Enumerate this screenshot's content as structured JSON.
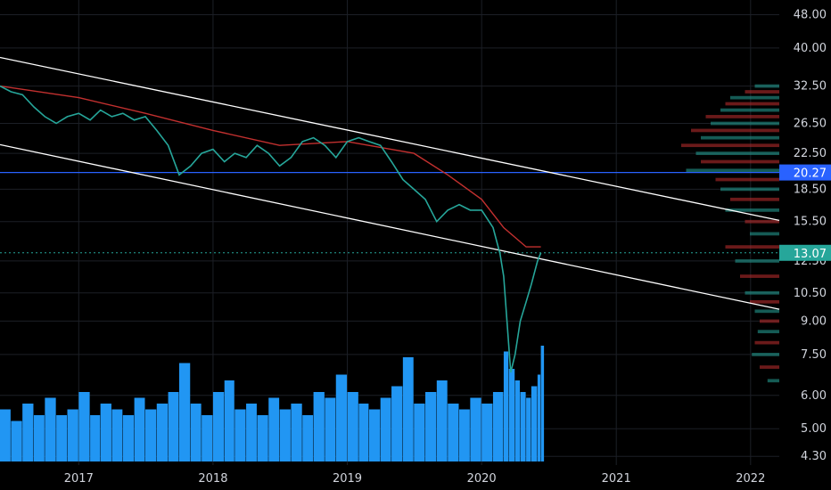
{
  "chart_data": {
    "type": "line",
    "title": "",
    "scale": "log",
    "ylim": [
      4.1,
      52
    ],
    "xlim": [
      "2016-06-01",
      "2022-03-20"
    ],
    "grid": true,
    "x_ticks": [
      "2017",
      "2018",
      "2019",
      "2020",
      "2021",
      "2022"
    ],
    "x_tick_dates": [
      "2017-01-01",
      "2018-01-01",
      "2019-01-01",
      "2020-01-01",
      "2021-01-01",
      "2022-01-01"
    ],
    "y_ticks": [
      "48.00",
      "40.00",
      "32.50",
      "26.50",
      "22.50",
      "18.50",
      "15.50",
      "12.50",
      "10.50",
      "9.00",
      "7.50",
      "6.00",
      "5.00",
      "4.30"
    ],
    "price_badges": [
      {
        "label": "20.27",
        "value": 20.27,
        "color": "#2962ff"
      },
      {
        "label": "13.07",
        "value": 13.07,
        "color": "#26a69a"
      }
    ],
    "price_series": {
      "dates": [
        "2016-06-01",
        "2016-07-01",
        "2016-08-01",
        "2016-09-01",
        "2016-10-01",
        "2016-11-01",
        "2016-12-01",
        "2017-01-01",
        "2017-02-01",
        "2017-03-01",
        "2017-04-01",
        "2017-05-01",
        "2017-06-01",
        "2017-07-01",
        "2017-08-01",
        "2017-09-01",
        "2017-10-01",
        "2017-11-01",
        "2017-12-01",
        "2018-01-01",
        "2018-02-01",
        "2018-03-01",
        "2018-04-01",
        "2018-05-01",
        "2018-06-01",
        "2018-07-01",
        "2018-08-01",
        "2018-09-01",
        "2018-10-01",
        "2018-11-01",
        "2018-12-01",
        "2019-01-01",
        "2019-02-01",
        "2019-03-01",
        "2019-04-01",
        "2019-05-01",
        "2019-06-01",
        "2019-07-01",
        "2019-08-01",
        "2019-09-01",
        "2019-10-01",
        "2019-11-01",
        "2019-12-01",
        "2020-01-01",
        "2020-02-01",
        "2020-02-20",
        "2020-03-01",
        "2020-03-10",
        "2020-03-20",
        "2020-04-01",
        "2020-04-15",
        "2020-05-01",
        "2020-05-15",
        "2020-06-01",
        "2020-06-10"
      ],
      "values": [
        32.5,
        31.5,
        31.0,
        29.0,
        27.5,
        26.5,
        27.5,
        28.0,
        27.0,
        28.5,
        27.5,
        28.0,
        27.0,
        27.5,
        25.5,
        23.5,
        20.0,
        21.0,
        22.5,
        23.0,
        21.5,
        22.5,
        22.0,
        23.5,
        22.5,
        21.0,
        22.0,
        24.0,
        24.5,
        23.5,
        22.0,
        24.0,
        24.5,
        24.0,
        23.5,
        21.5,
        19.5,
        18.5,
        17.5,
        15.5,
        16.5,
        17.0,
        16.5,
        16.5,
        15.0,
        13.0,
        11.5,
        9.0,
        6.8,
        7.5,
        9.0,
        10.0,
        11.0,
        12.5,
        13.07
      ]
    },
    "moving_average": {
      "dates": [
        "2016-06-01",
        "2017-01-01",
        "2017-07-01",
        "2018-01-01",
        "2018-07-01",
        "2019-01-01",
        "2019-07-01",
        "2019-10-01",
        "2020-01-01",
        "2020-03-01",
        "2020-05-01",
        "2020-06-10"
      ],
      "values": [
        32.5,
        30.5,
        28.0,
        25.5,
        23.5,
        24.0,
        22.5,
        20.0,
        17.5,
        15.0,
        13.5,
        13.5
      ]
    },
    "channel_lines": [
      {
        "start": [
          "2016-06-01",
          38.0
        ],
        "end": [
          "2022-03-20",
          15.6
        ]
      },
      {
        "start": [
          "2016-06-01",
          23.6
        ],
        "end": [
          "2022-03-20",
          9.6
        ]
      }
    ],
    "horizontal_line": {
      "value": 20.27,
      "color": "#2962ff"
    },
    "current_price_line": {
      "value": 13.07,
      "color": "#26a69a"
    },
    "volume": {
      "dates": [
        "2016-06-01",
        "2016-07-01",
        "2016-08-01",
        "2016-09-01",
        "2016-10-01",
        "2016-11-01",
        "2016-12-01",
        "2017-01-01",
        "2017-02-01",
        "2017-03-01",
        "2017-04-01",
        "2017-05-01",
        "2017-06-01",
        "2017-07-01",
        "2017-08-01",
        "2017-09-01",
        "2017-10-01",
        "2017-11-01",
        "2017-12-01",
        "2018-01-01",
        "2018-02-01",
        "2018-03-01",
        "2018-04-01",
        "2018-05-01",
        "2018-06-01",
        "2018-07-01",
        "2018-08-01",
        "2018-09-01",
        "2018-10-01",
        "2018-11-01",
        "2018-12-01",
        "2019-01-01",
        "2019-02-01",
        "2019-03-01",
        "2019-04-01",
        "2019-05-01",
        "2019-06-01",
        "2019-07-01",
        "2019-08-01",
        "2019-09-01",
        "2019-10-01",
        "2019-11-01",
        "2019-12-01",
        "2020-01-01",
        "2020-02-01",
        "2020-03-01",
        "2020-03-15",
        "2020-04-01",
        "2020-04-15",
        "2020-05-01",
        "2020-05-15",
        "2020-06-01",
        "2020-06-10"
      ],
      "values": [
        0.45,
        0.35,
        0.5,
        0.4,
        0.55,
        0.4,
        0.45,
        0.6,
        0.4,
        0.5,
        0.45,
        0.4,
        0.55,
        0.45,
        0.5,
        0.6,
        0.85,
        0.5,
        0.4,
        0.6,
        0.7,
        0.45,
        0.5,
        0.4,
        0.55,
        0.45,
        0.5,
        0.4,
        0.6,
        0.55,
        0.75,
        0.6,
        0.5,
        0.45,
        0.55,
        0.65,
        0.9,
        0.5,
        0.6,
        0.7,
        0.5,
        0.45,
        0.55,
        0.5,
        0.6,
        0.95,
        0.8,
        0.7,
        0.6,
        0.55,
        0.65,
        0.75,
        1.0
      ]
    },
    "volume_profile": {
      "prices": [
        32.5,
        31.5,
        30.5,
        29.5,
        28.5,
        27.5,
        26.5,
        25.5,
        24.5,
        23.5,
        22.5,
        21.5,
        20.5,
        19.5,
        18.5,
        17.5,
        16.5,
        15.5,
        14.5,
        13.5,
        12.5,
        11.5,
        10.5,
        10.0,
        9.5,
        9.0,
        8.5,
        8.0,
        7.5,
        7.0,
        6.5
      ],
      "values": [
        0.25,
        0.35,
        0.5,
        0.55,
        0.6,
        0.75,
        0.7,
        0.9,
        0.8,
        1.0,
        0.85,
        0.8,
        0.95,
        0.65,
        0.6,
        0.5,
        0.55,
        0.35,
        0.3,
        0.55,
        0.45,
        0.4,
        0.35,
        0.3,
        0.25,
        0.2,
        0.22,
        0.25,
        0.28,
        0.2,
        0.12
      ]
    },
    "colors": {
      "background": "#000000",
      "grid": "#1c1f26",
      "price": "#26a69a",
      "moving_average": "#c2302f",
      "volume": "#2196f3",
      "channel": "#ffffff",
      "profile_up": "#26a69a",
      "profile_down": "#c2302f"
    }
  }
}
